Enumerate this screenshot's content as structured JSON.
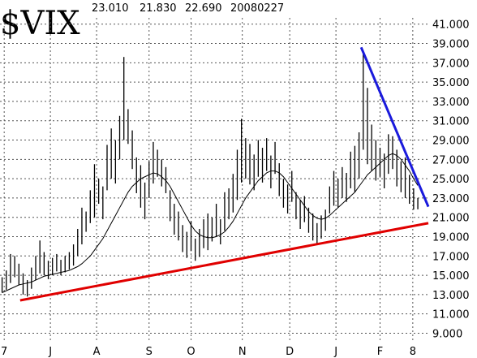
{
  "chart_data": {
    "type": "hilo",
    "title": "$VIX",
    "stats": [
      {
        "value": 23.01,
        "label": "23.010"
      },
      {
        "value": 21.83,
        "label": "21.830"
      },
      {
        "value": 22.69,
        "label": "22.690"
      }
    ],
    "date": "20080227",
    "color": "#000000",
    "high": [
      14.8,
      15.5,
      17.2,
      17.0,
      16.2,
      15.2,
      14.5,
      15.8,
      17.0,
      18.6,
      17.4,
      16.5,
      16.8,
      17.2,
      16.6,
      17.0,
      17.4,
      18.2,
      19.8,
      22.0,
      21.6,
      23.8,
      26.5,
      25.0,
      24.2,
      28.5,
      30.2,
      29.0,
      31.5,
      37.6,
      32.2,
      30.0,
      27.2,
      26.4,
      24.6,
      26.8,
      28.8,
      28.0,
      27.0,
      26.2,
      23.8,
      22.4,
      21.6,
      20.2,
      19.5,
      20.6,
      18.8,
      19.8,
      20.8,
      21.4,
      21.0,
      22.4,
      20.8,
      23.6,
      24.0,
      25.5,
      28.0,
      31.2,
      29.2,
      28.6,
      27.5,
      29.0,
      28.2,
      29.2,
      27.4,
      28.8,
      26.6,
      25.0,
      24.4,
      25.8,
      23.6,
      22.8,
      23.2,
      22.0,
      21.4,
      20.4,
      21.2,
      21.8,
      24.2,
      25.8,
      25.0,
      26.2,
      25.6,
      27.8,
      28.4,
      29.8,
      38.2,
      34.4,
      30.6,
      29.0,
      28.2,
      27.6,
      29.6,
      29.4,
      28.0,
      26.8,
      27.2,
      25.4,
      24.0,
      23.01
    ],
    "low": [
      13.2,
      13.5,
      14.2,
      14.8,
      14.0,
      13.0,
      12.8,
      13.6,
      14.5,
      15.2,
      15.0,
      14.6,
      15.0,
      15.4,
      15.0,
      15.3,
      15.6,
      16.0,
      17.0,
      18.2,
      19.5,
      20.4,
      21.0,
      22.4,
      20.8,
      23.8,
      25.0,
      24.5,
      27.0,
      29.0,
      28.6,
      26.0,
      23.5,
      22.0,
      20.8,
      23.0,
      24.5,
      25.2,
      24.2,
      23.5,
      20.6,
      19.2,
      18.6,
      17.4,
      16.8,
      17.5,
      16.5,
      16.9,
      17.8,
      17.6,
      18.5,
      19.0,
      18.2,
      19.6,
      20.8,
      21.5,
      22.8,
      24.6,
      25.0,
      24.4,
      23.8,
      25.2,
      24.6,
      25.8,
      24.0,
      25.5,
      23.2,
      22.0,
      21.4,
      22.6,
      20.8,
      19.8,
      20.5,
      19.4,
      18.6,
      18.2,
      18.8,
      19.6,
      21.4,
      22.2,
      22.0,
      23.0,
      22.6,
      24.0,
      23.6,
      25.0,
      28.0,
      26.5,
      25.8,
      24.8,
      25.2,
      24.0,
      25.5,
      26.0,
      24.2,
      23.6,
      23.0,
      22.4,
      21.8,
      21.83
    ],
    "moving_average": {
      "color": "#000000",
      "values": [
        13.2,
        13.4,
        13.6,
        13.8,
        14.0,
        14.1,
        14.2,
        14.3,
        14.5,
        14.7,
        14.9,
        15.0,
        15.1,
        15.2,
        15.3,
        15.4,
        15.5,
        15.7,
        15.9,
        16.2,
        16.6,
        17.0,
        17.6,
        18.2,
        18.8,
        19.6,
        20.4,
        21.2,
        22.0,
        22.8,
        23.6,
        24.2,
        24.6,
        25.0,
        25.2,
        25.4,
        25.6,
        25.5,
        25.2,
        24.8,
        24.2,
        23.4,
        22.6,
        21.8,
        21.0,
        20.2,
        19.6,
        19.2,
        19.0,
        18.9,
        18.9,
        19.0,
        19.2,
        19.5,
        20.0,
        20.6,
        21.4,
        22.2,
        23.0,
        23.6,
        24.2,
        24.8,
        25.2,
        25.6,
        25.8,
        25.8,
        25.6,
        25.2,
        24.6,
        24.0,
        23.4,
        22.8,
        22.2,
        21.6,
        21.2,
        20.9,
        20.8,
        20.9,
        21.2,
        21.6,
        22.0,
        22.4,
        22.8,
        23.2,
        23.6,
        24.2,
        24.8,
        25.4,
        25.8,
        26.2,
        26.6,
        27.0,
        27.4,
        27.6,
        27.4,
        27.0,
        26.4,
        25.8,
        25.0,
        24.3
      ]
    },
    "trendlines": [
      {
        "color": "#e00000",
        "x": [
          4.8,
          102
        ],
        "y": [
          12.4,
          20.4
        ]
      },
      {
        "color": "#1a1adc",
        "x": [
          86,
          102
        ],
        "y": [
          38.6,
          22.1
        ]
      }
    ],
    "xlim": [
      0,
      102
    ],
    "xticks": [
      {
        "value": 1,
        "label": "7"
      },
      {
        "value": 12,
        "label": "J"
      },
      {
        "value": 23,
        "label": "A"
      },
      {
        "value": 35.5,
        "label": "S"
      },
      {
        "value": 45.5,
        "label": "O"
      },
      {
        "value": 57.7,
        "label": "N"
      },
      {
        "value": 69,
        "label": "D"
      },
      {
        "value": 80,
        "label": "J"
      },
      {
        "value": 90.5,
        "label": "F"
      },
      {
        "value": 98.3,
        "label": "8"
      }
    ],
    "ylim": [
      8.2,
      43.5
    ],
    "yticks": [
      {
        "value": 9,
        "label": "9.000"
      },
      {
        "value": 11,
        "label": "11.000"
      },
      {
        "value": 13,
        "label": "13.000"
      },
      {
        "value": 15,
        "label": "15.000"
      },
      {
        "value": 17,
        "label": "17.000"
      },
      {
        "value": 19,
        "label": "19.000"
      },
      {
        "value": 21,
        "label": "21.000"
      },
      {
        "value": 23,
        "label": "23.000"
      },
      {
        "value": 25,
        "label": "25.000"
      },
      {
        "value": 27,
        "label": "27.000"
      },
      {
        "value": 29,
        "label": "29.000"
      },
      {
        "value": 31,
        "label": "31.000"
      },
      {
        "value": 33,
        "label": "33.000"
      },
      {
        "value": 35,
        "label": "35.000"
      },
      {
        "value": 37,
        "label": "37.000"
      },
      {
        "value": 39,
        "label": "39.000"
      },
      {
        "value": 41,
        "label": "41.000"
      }
    ],
    "grid": true
  }
}
